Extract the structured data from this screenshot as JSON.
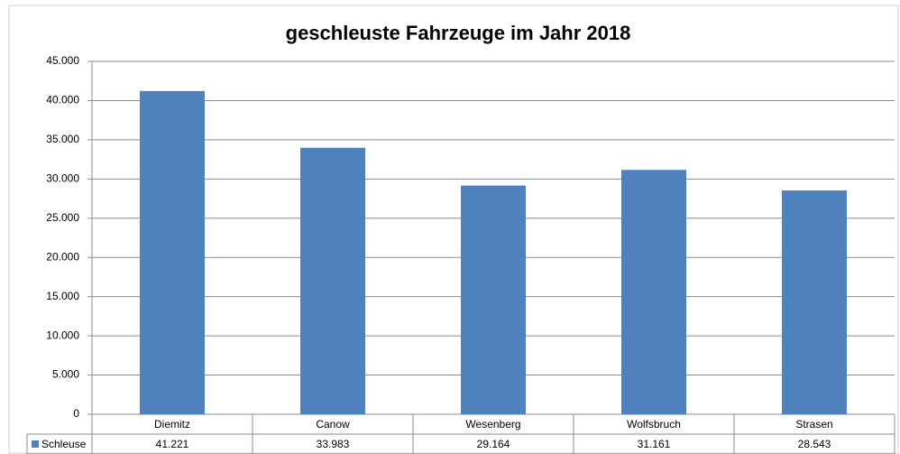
{
  "chart_data": {
    "type": "bar",
    "title": "geschleuste Fahrzeuge im Jahr 2018",
    "categories": [
      "Diemitz",
      "Canow",
      "Wesenberg",
      "Wolfsbruch",
      "Strasen"
    ],
    "series": [
      {
        "name": "Schleuse",
        "color": "#4f81bd",
        "values": [
          41221,
          33983,
          29164,
          31161,
          28543
        ],
        "value_labels": [
          "41.221",
          "33.983",
          "29.164",
          "31.161",
          "28.543"
        ]
      }
    ],
    "ylim": [
      0,
      45000
    ],
    "yticks": [
      0,
      {
        "value": 5000,
        "label": "5.000"
      },
      {
        "value": 10000,
        "label": "10.000"
      },
      {
        "value": 15000,
        "label": "15.000"
      },
      {
        "value": 20000,
        "label": "20.000"
      },
      {
        "value": 25000,
        "label": "25.000"
      },
      {
        "value": 30000,
        "label": "30.000"
      },
      {
        "value": 35000,
        "label": "35.000"
      },
      {
        "value": 40000,
        "label": "40.000"
      },
      {
        "value": 45000,
        "label": "45.000"
      }
    ],
    "grid": true
  }
}
